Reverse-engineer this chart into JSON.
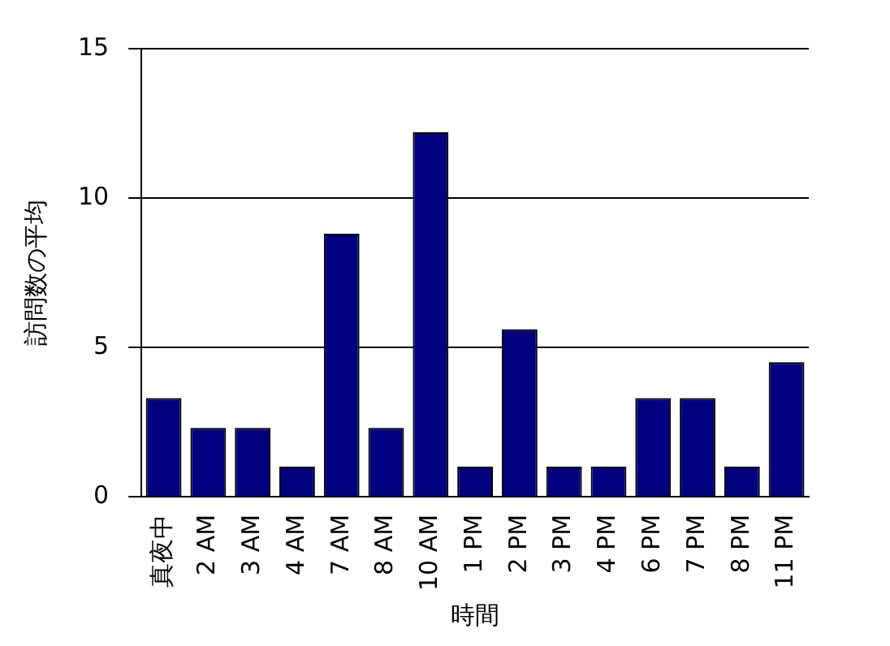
{
  "chart_data": {
    "type": "bar",
    "categories": [
      "真夜中",
      "2 AM",
      "3 AM",
      "4 AM",
      "7 AM",
      "8 AM",
      "10 AM",
      "1 PM",
      "2 PM",
      "3 PM",
      "4 PM",
      "6 PM",
      "7 PM",
      "8 PM",
      "11 PM"
    ],
    "values": [
      3.3,
      2.3,
      2.3,
      1,
      8.8,
      2.3,
      12.2,
      1,
      5.6,
      1,
      1,
      3.3,
      3.3,
      1,
      4.5
    ],
    "color": "#000080",
    "xlabel": "時間",
    "ylabel": "訪問数の平均",
    "ylim": [
      0,
      15
    ],
    "yticks": [
      0,
      5,
      10,
      15
    ],
    "grid": "y",
    "legend": false
  }
}
